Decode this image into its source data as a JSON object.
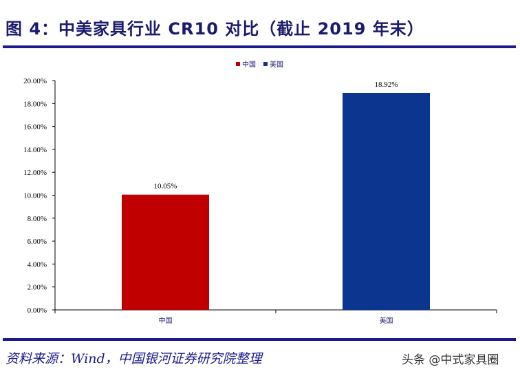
{
  "title": "图 4：中美家具行业 CR10 对比（截止 2019 年末）",
  "source": "资料来源：Wind，中国银河证券研究院整理",
  "credit": "头条 @中式家具圈",
  "chart_data": {
    "type": "bar",
    "categories": [
      "中国",
      "美国"
    ],
    "values": [
      10.05,
      18.92
    ],
    "data_labels": [
      "10.05%",
      "18.92%"
    ],
    "colors": [
      "#c00000",
      "#0c3590"
    ],
    "legend": [
      "中国",
      "美国"
    ],
    "legend_position": "top",
    "ylim": [
      0,
      20
    ],
    "yticks": [
      "0.00%",
      "2.00%",
      "4.00%",
      "6.00%",
      "8.00%",
      "10.00%",
      "12.00%",
      "14.00%",
      "16.00%",
      "18.00%",
      "20.00%"
    ],
    "grid": false
  }
}
